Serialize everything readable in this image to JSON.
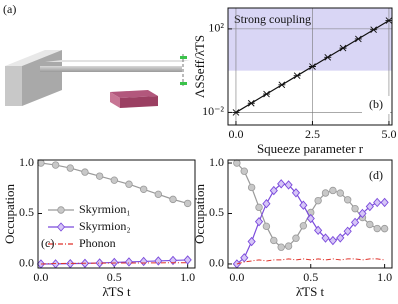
{
  "panel_a": {
    "label": "(a)"
  },
  "chart_data": [
    {
      "type": "line",
      "panel_label": "(b)",
      "x_label": "Squeeze parameter r",
      "y_label": "ΛSSeff/λ̄TS",
      "log_y": true,
      "grid": true,
      "annotation": "Strong coupling",
      "shade": {
        "from": 1,
        "to": 1000,
        "color": "#d9d6f5"
      },
      "x": [
        0,
        0.5,
        1,
        1.5,
        2,
        2.5,
        3,
        3.5,
        4,
        4.5,
        5
      ],
      "series": [
        {
          "color": "#111111",
          "marker": "x",
          "values": [
            0.01,
            0.0275,
            0.0759,
            0.209,
            0.575,
            1.58,
            4.37,
            12.0,
            33.1,
            91.2,
            251
          ]
        }
      ],
      "xlim": [
        -0.26,
        5.1
      ],
      "xticks": [
        {
          "value": 0,
          "label": "0.0"
        },
        2.5,
        {
          "value": 5,
          "label": "5.0"
        }
      ],
      "ylim": [
        0.0025,
        1000
      ],
      "yticks": [
        {
          "value": 0.01,
          "label": "10⁻²"
        },
        {
          "value": 100,
          "label": "10²"
        }
      ]
    },
    {
      "type": "line",
      "panel_label": "(c)",
      "x_label": "λ̄TS t",
      "y_label": "Occupation",
      "x": [
        0,
        0.1,
        0.2,
        0.3,
        0.4,
        0.5,
        0.6,
        0.7,
        0.8,
        0.9,
        1
      ],
      "series": [
        {
          "name": "Skyrmion₁",
          "color": "#9a9a9a",
          "marker": "circle",
          "values": [
            1.0,
            0.98,
            0.95,
            0.91,
            0.87,
            0.83,
            0.79,
            0.74,
            0.69,
            0.64,
            0.6
          ]
        },
        {
          "name": "Skyrmion₂",
          "color": "#7b4bdc",
          "marker": "diamond",
          "values": [
            0,
            0.001,
            0.003,
            0.006,
            0.01,
            0.015,
            0.02,
            0.025,
            0.03,
            0.035,
            0.04
          ]
        },
        {
          "name": "Phonon",
          "color": "#e0322a",
          "dash": "dashdot",
          "values": [
            0,
            0.004,
            0.006,
            0.007,
            0.008,
            0.009,
            0.01,
            0.01,
            0.011,
            0.012,
            0.012
          ]
        }
      ],
      "legend": "lower left",
      "xlim": [
        -0.02,
        1.05
      ],
      "xticks": [
        {
          "value": 0,
          "label": "0.0"
        },
        0.5,
        {
          "value": 1,
          "label": "1.0"
        }
      ],
      "ylim": [
        -0.04,
        1.03
      ],
      "yticks": [
        {
          "value": 0,
          "label": "0.0"
        },
        0.5,
        {
          "value": 1,
          "label": "1.0"
        }
      ]
    },
    {
      "type": "line",
      "panel_label": "(d)",
      "x_label": "λ̄TS t",
      "y_label": "Occupation",
      "x": [
        0,
        0.05,
        0.1,
        0.15,
        0.2,
        0.25,
        0.3,
        0.35,
        0.4,
        0.45,
        0.5,
        0.55,
        0.6,
        0.65,
        0.7,
        0.75,
        0.8,
        0.85,
        0.9,
        0.95,
        1
      ],
      "series": [
        {
          "color": "#9a9a9a",
          "marker": "circle",
          "values": [
            1.0,
            0.919,
            0.758,
            0.561,
            0.373,
            0.233,
            0.166,
            0.177,
            0.255,
            0.378,
            0.51,
            0.627,
            0.703,
            0.728,
            0.702,
            0.636,
            0.548,
            0.46,
            0.391,
            0.351,
            0.35
          ]
        },
        {
          "color": "#7b4bdc",
          "marker": "diamond",
          "values": [
            0,
            0.061,
            0.222,
            0.419,
            0.597,
            0.727,
            0.794,
            0.783,
            0.705,
            0.582,
            0.45,
            0.333,
            0.257,
            0.232,
            0.258,
            0.324,
            0.412,
            0.5,
            0.569,
            0.609,
            0.61
          ]
        },
        {
          "color": "#e0322a",
          "dash": "dashdot",
          "values": [
            0,
            0.02,
            0.03,
            0.04,
            0.03,
            0.04,
            0.04,
            0.05,
            0.04,
            0.05,
            0.04,
            0.05,
            0.04,
            0.05,
            0.04,
            0.05,
            0.05,
            0.04,
            0.05,
            0.05,
            0.04
          ]
        }
      ],
      "xlim": [
        -0.06,
        1.05
      ],
      "xticks": [
        {
          "value": 0,
          "label": "0.0"
        },
        0.5,
        {
          "value": 1,
          "label": "1.0"
        }
      ],
      "ylim": [
        -0.04,
        1.03
      ],
      "yticks": [
        {
          "value": 0,
          "label": "0.0"
        },
        0.5,
        {
          "value": 1,
          "label": "1.0"
        }
      ]
    }
  ]
}
